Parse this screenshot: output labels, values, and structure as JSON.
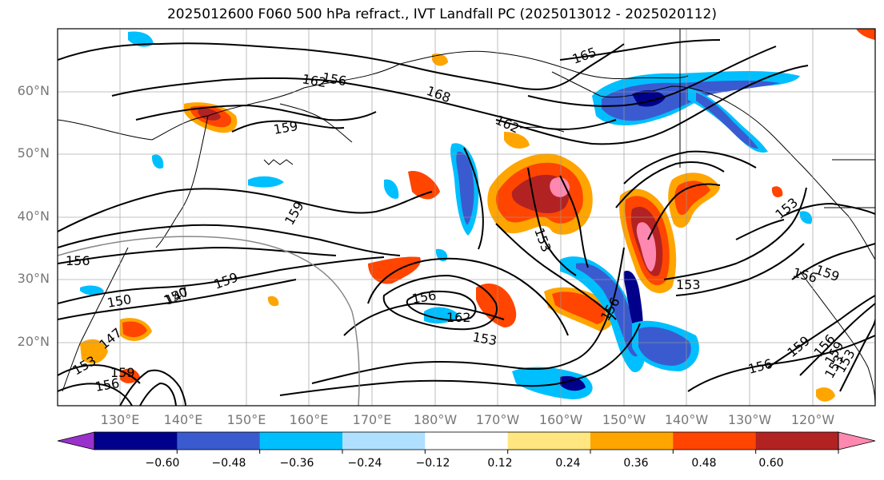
{
  "title": "2025012600 F060 500 hPa refract., IVT Landfall PC (2025013012 - 2025020112)",
  "lat_labels": [
    "60°N",
    "50°N",
    "40°N",
    "30°N",
    "20°N"
  ],
  "lon_labels": [
    "130°E",
    "140°E",
    "150°E",
    "160°E",
    "170°E",
    "180°W",
    "170°W",
    "160°W",
    "150°W",
    "140°W",
    "130°W",
    "120°W"
  ],
  "contour_labels": [
    "165",
    "168",
    "162",
    "159",
    "162",
    "153",
    "159",
    "156",
    "150",
    "147",
    "159",
    "156",
    "147",
    "153",
    "156",
    "162",
    "159",
    "153",
    "153",
    "156",
    "153",
    "156",
    "159",
    "156",
    "153",
    "156",
    "159",
    "150",
    "153",
    "156",
    "159"
  ],
  "colorbar": {
    "tick_labels": [
      "−0.60",
      "−0.48",
      "−0.36",
      "−0.24",
      "−0.12",
      "0.12",
      "0.24",
      "0.36",
      "0.48",
      "0.60"
    ],
    "colors": [
      "#9932cc",
      "#00008b",
      "#3a5bd0",
      "#00bfff",
      "#b0e0ff",
      "#ffffff",
      "#ffe680",
      "#ffa500",
      "#ff4500",
      "#b22222",
      "#ff88b0"
    ]
  }
}
